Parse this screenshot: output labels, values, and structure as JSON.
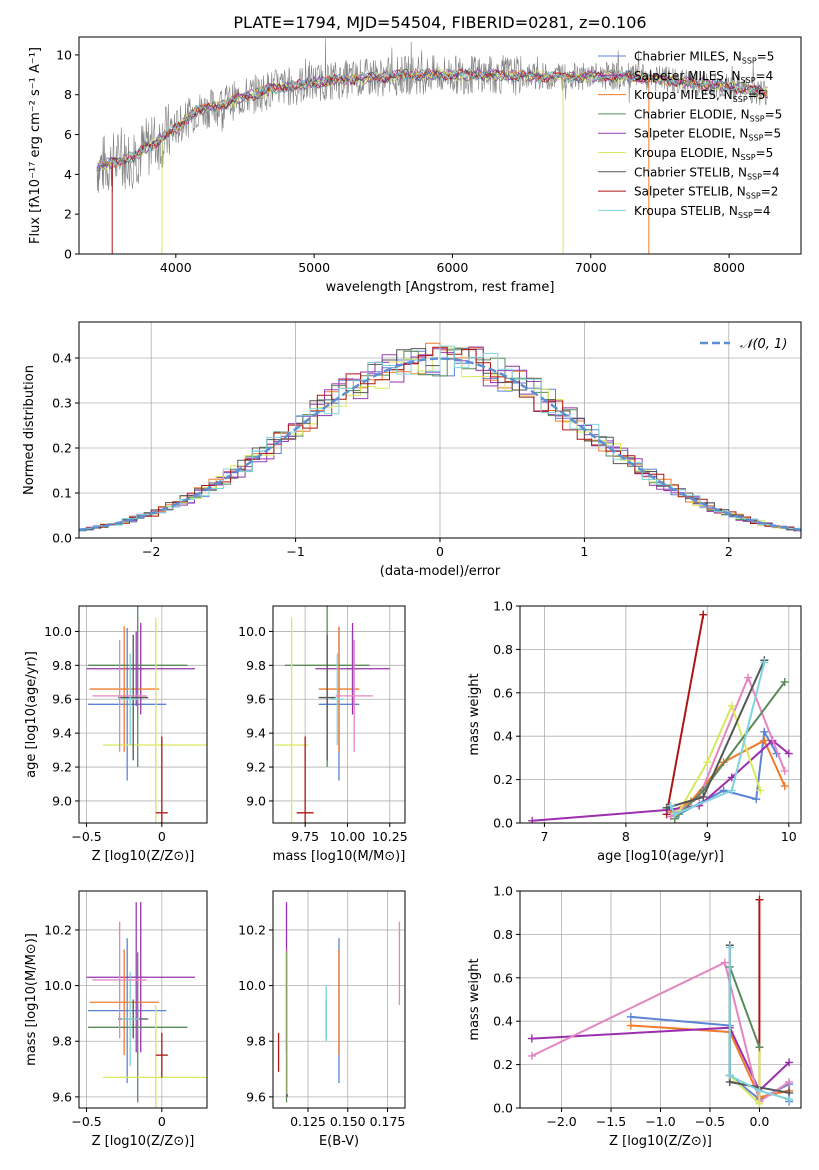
{
  "figure_title": "PLATE=1794, MJD=54504, FIBERID=0281, z=0.106",
  "colors": {
    "chabrier_miles": "#5b84d7",
    "salpeter_miles": "#9b2fae",
    "kroupa_miles": "#ef7c2b",
    "chabrier_elodie": "#5b8a5a",
    "salpeter_elodie": "#9a3fb5",
    "kroupa_elodie": "#d9e85e",
    "chabrier_stelib": "#555555",
    "salpeter_stelib": "#b01515",
    "kroupa_stelib": "#7fd3dd",
    "spectrum_grey": "#808080",
    "pink": "#e585c0",
    "normal_curve": "#5b8fd6"
  },
  "legend_spectrum": [
    {
      "label": "Chabrier MILES, N",
      "sub": "SSP",
      "suffix": "=5",
      "color": "#5b84d7"
    },
    {
      "label": "Salpeter MILES, N",
      "sub": "SSP",
      "suffix": "=4",
      "color": "#9b2fae"
    },
    {
      "label": "Kroupa MILES, N",
      "sub": "SSP",
      "suffix": "=5",
      "color": "#ef7c2b"
    },
    {
      "label": "Chabrier ELODIE, N",
      "sub": "SSP",
      "suffix": "=5",
      "color": "#5b8a5a"
    },
    {
      "label": "Salpeter ELODIE, N",
      "sub": "SSP",
      "suffix": "=5",
      "color": "#9a3fb5"
    },
    {
      "label": "Kroupa ELODIE, N",
      "sub": "SSP",
      "suffix": "=5",
      "color": "#d9e85e"
    },
    {
      "label": "Chabrier STELIB, N",
      "sub": "SSP",
      "suffix": "=4",
      "color": "#555555"
    },
    {
      "label": "Salpeter STELIB, N",
      "sub": "SSP",
      "suffix": "=2",
      "color": "#b01515"
    },
    {
      "label": "Kroupa STELIB, N",
      "sub": "SSP",
      "suffix": "=4",
      "color": "#7fd3dd"
    }
  ],
  "chart_data": [
    {
      "id": "spectrum",
      "type": "line",
      "xlabel": "wavelength [Angstrom, rest frame]",
      "ylabel": "Flux [fλ10⁻¹⁷ erg cm⁻² s⁻¹ A⁻¹]",
      "xlim": [
        3300,
        8520
      ],
      "ylim": [
        0,
        10.9
      ],
      "xticks": [
        4000,
        5000,
        6000,
        7000,
        8000
      ],
      "yticks": [
        0,
        2,
        4,
        6,
        8,
        10
      ],
      "continuum": {
        "x": [
          3430,
          3550,
          3700,
          3850,
          4000,
          4150,
          4300,
          4500,
          4700,
          4900,
          5100,
          5300,
          5500,
          5700,
          5900,
          6100,
          6300,
          6500,
          6700,
          6900,
          7100,
          7300,
          7500,
          7700,
          7900,
          8100,
          8280
        ],
        "y": [
          4.4,
          4.6,
          4.9,
          5.6,
          6.3,
          7.2,
          7.4,
          7.9,
          8.3,
          8.5,
          8.7,
          8.8,
          8.9,
          9.0,
          9.0,
          9.0,
          9.0,
          8.95,
          8.9,
          8.9,
          8.95,
          8.9,
          8.8,
          8.6,
          8.5,
          8.3,
          8.1
        ]
      }
    },
    {
      "id": "residuals",
      "type": "histogram",
      "xlabel": "(data-model)/error",
      "ylabel": "Normed distribution",
      "xlim": [
        -2.5,
        2.5
      ],
      "ylim": [
        0,
        0.48
      ],
      "xticks": [
        -2,
        -1,
        0,
        1,
        2
      ],
      "yticks": [
        0.0,
        0.1,
        0.2,
        0.3,
        0.4
      ],
      "legend": "𝒩(0, 1)",
      "bin_width": 0.1,
      "grid": true
    },
    {
      "id": "age_vs_Z",
      "type": "errorbar",
      "xlabel": "Z [log10(Z/Z⊙)]",
      "ylabel": "age  [log10(age/yr)]",
      "xlim": [
        -0.55,
        0.3
      ],
      "ylim": [
        8.87,
        10.15
      ],
      "xticks": [
        -0.5,
        0.0
      ],
      "yticks": [
        9.0,
        9.2,
        9.4,
        9.6,
        9.8,
        10.0
      ],
      "points": [
        {
          "x": -0.23,
          "y": 9.57,
          "xerr": 0.26,
          "yerr": 0.45,
          "color": "#5b84d7"
        },
        {
          "x": -0.14,
          "y": 9.78,
          "xerr": 0.36,
          "yerr": 0.27,
          "color": "#9b2fae"
        },
        {
          "x": -0.25,
          "y": 9.66,
          "xerr": 0.23,
          "yerr": 0.37,
          "color": "#ef7c2b"
        },
        {
          "x": -0.16,
          "y": 9.8,
          "xerr": 0.33,
          "yerr": 0.6,
          "color": "#5b8a5a"
        },
        {
          "x": -0.17,
          "y": 9.78,
          "xerr": 0.06,
          "yerr": 0.22,
          "color": "#9a3fb5"
        },
        {
          "x": -0.04,
          "y": 9.33,
          "xerr": 0.35,
          "yerr": 0.75,
          "color": "#d9e85e"
        },
        {
          "x": -0.19,
          "y": 9.61,
          "xerr": 0.1,
          "yerr": 0.37,
          "color": "#555555"
        },
        {
          "x": 0.0,
          "y": 8.93,
          "xerr": 0.04,
          "yerr": 0.45,
          "color": "#b01515"
        },
        {
          "x": -0.21,
          "y": 9.6,
          "xerr": 0.06,
          "yerr": 0.27,
          "color": "#7fd3dd"
        },
        {
          "x": -0.28,
          "y": 9.62,
          "xerr": 0.18,
          "yerr": 0.33,
          "color": "#e585c0"
        }
      ]
    },
    {
      "id": "age_vs_mass",
      "type": "errorbar",
      "xlabel": "mass [log10(M/M⊙)]",
      "ylabel": "",
      "xlim": [
        9.56,
        10.34
      ],
      "ylim": [
        8.87,
        10.15
      ],
      "xticks": [
        9.75,
        10.0,
        10.25
      ],
      "yticks": [
        9.0,
        9.2,
        9.4,
        9.6,
        9.8,
        10.0
      ],
      "points": [
        {
          "x": 9.95,
          "y": 9.57,
          "xerr": 0.12,
          "yerr": 0.45,
          "color": "#5b84d7"
        },
        {
          "x": 10.03,
          "y": 9.78,
          "xerr": 0.22,
          "yerr": 0.27,
          "color": "#9b2fae"
        },
        {
          "x": 9.95,
          "y": 9.66,
          "xerr": 0.12,
          "yerr": 0.37,
          "color": "#ef7c2b"
        },
        {
          "x": 9.88,
          "y": 9.8,
          "xerr": 0.25,
          "yerr": 0.6,
          "color": "#5b8a5a"
        },
        {
          "x": 10.03,
          "y": 9.78,
          "xerr": 0.03,
          "yerr": 0.22,
          "color": "#9a3fb5"
        },
        {
          "x": 9.67,
          "y": 9.33,
          "xerr": 0.1,
          "yerr": 0.75,
          "color": "#d9e85e"
        },
        {
          "x": 9.88,
          "y": 9.61,
          "xerr": 0.05,
          "yerr": 0.37,
          "color": "#555555"
        },
        {
          "x": 9.75,
          "y": 8.93,
          "xerr": 0.05,
          "yerr": 0.45,
          "color": "#b01515"
        },
        {
          "x": 9.94,
          "y": 9.6,
          "xerr": 0.04,
          "yerr": 0.27,
          "color": "#7fd3dd"
        },
        {
          "x": 10.04,
          "y": 9.62,
          "xerr": 0.11,
          "yerr": 0.33,
          "color": "#e585c0"
        }
      ]
    },
    {
      "id": "weight_vs_age",
      "type": "line",
      "xlabel": "age  [log10(age/yr)]",
      "ylabel": "mass weight",
      "xlim": [
        6.7,
        10.15
      ],
      "ylim": [
        0.0,
        1.0
      ],
      "xticks": [
        7,
        8,
        9,
        10
      ],
      "yticks": [
        0.0,
        0.2,
        0.4,
        0.6,
        0.8,
        1.0
      ],
      "series": [
        {
          "color": "#b01515",
          "x": [
            8.5,
            8.95
          ],
          "y": [
            0.04,
            0.96
          ]
        },
        {
          "color": "#5b84d7",
          "x": [
            8.5,
            8.65,
            9.2,
            9.6,
            9.7,
            9.85
          ],
          "y": [
            0.07,
            0.04,
            0.15,
            0.11,
            0.42,
            0.32
          ]
        },
        {
          "color": "#ef7c2b",
          "x": [
            8.55,
            8.8,
            9.2,
            9.7,
            9.95
          ],
          "y": [
            0.05,
            0.1,
            0.28,
            0.38,
            0.17
          ]
        },
        {
          "color": "#9b2fae",
          "x": [
            6.85,
            8.5,
            8.9,
            9.3,
            9.8,
            10.0
          ],
          "y": [
            0.01,
            0.06,
            0.08,
            0.21,
            0.38,
            0.32
          ]
        },
        {
          "color": "#e585c0",
          "x": [
            8.55,
            8.9,
            9.5,
            9.95
          ],
          "y": [
            0.03,
            0.12,
            0.67,
            0.24
          ]
        },
        {
          "color": "#d9e85e",
          "x": [
            8.6,
            9.0,
            9.3,
            9.65
          ],
          "y": [
            0.02,
            0.28,
            0.54,
            0.15
          ]
        },
        {
          "color": "#5b8a5a",
          "x": [
            8.6,
            8.95,
            9.95
          ],
          "y": [
            0.02,
            0.15,
            0.65
          ]
        },
        {
          "color": "#555555",
          "x": [
            8.5,
            8.95,
            9.7
          ],
          "y": [
            0.07,
            0.12,
            0.75
          ]
        },
        {
          "color": "#7fd3dd",
          "x": [
            8.55,
            8.6,
            9.3,
            9.7
          ],
          "y": [
            0.08,
            0.04,
            0.15,
            0.74
          ]
        }
      ]
    },
    {
      "id": "mass_vs_Z",
      "type": "errorbar",
      "xlabel": "Z [log10(Z/Z⊙)]",
      "ylabel": "mass [log10(M/M⊙)]",
      "xlim": [
        -0.55,
        0.3
      ],
      "ylim": [
        9.56,
        10.34
      ],
      "xticks": [
        -0.5,
        0.0
      ],
      "yticks": [
        9.6,
        9.8,
        10.0,
        10.2
      ],
      "points": [
        {
          "x": -0.23,
          "y": 9.91,
          "xerr": 0.26,
          "yerr": 0.26,
          "color": "#5b84d7"
        },
        {
          "x": -0.14,
          "y": 10.03,
          "xerr": 0.36,
          "yerr": 0.27,
          "color": "#9b2fae"
        },
        {
          "x": -0.25,
          "y": 9.94,
          "xerr": 0.23,
          "yerr": 0.19,
          "color": "#ef7c2b"
        },
        {
          "x": -0.16,
          "y": 9.85,
          "xerr": 0.33,
          "yerr": 0.27,
          "color": "#5b8a5a"
        },
        {
          "x": -0.17,
          "y": 10.03,
          "xerr": 0.06,
          "yerr": 0.27,
          "color": "#9a3fb5"
        },
        {
          "x": -0.04,
          "y": 9.67,
          "xerr": 0.35,
          "yerr": 0.26,
          "color": "#d9e85e"
        },
        {
          "x": -0.19,
          "y": 9.88,
          "xerr": 0.1,
          "yerr": 0.07,
          "color": "#555555"
        },
        {
          "x": 0.0,
          "y": 9.75,
          "xerr": 0.04,
          "yerr": 0.08,
          "color": "#b01515"
        },
        {
          "x": -0.21,
          "y": 9.88,
          "xerr": 0.06,
          "yerr": 0.17,
          "color": "#7fd3dd"
        },
        {
          "x": -0.28,
          "y": 10.02,
          "xerr": 0.18,
          "yerr": 0.21,
          "color": "#e585c0"
        }
      ]
    },
    {
      "id": "mass_vs_ebv",
      "type": "errorbar",
      "xlabel": "E(B-V)",
      "ylabel": "",
      "xlim": [
        0.103,
        0.186
      ],
      "ylim": [
        9.56,
        10.34
      ],
      "xticks": [
        0.125,
        0.15,
        0.175
      ],
      "yticks": [
        9.6,
        9.8,
        10.0,
        10.2
      ],
      "xtick_labels": [
        "0.125",
        "0.150",
        "0.175"
      ],
      "points": [
        {
          "x": 0.1445,
          "y": 9.91,
          "xerr": 0,
          "yerr": 0.26,
          "color": "#5b84d7"
        },
        {
          "x": 0.1115,
          "y": 10.03,
          "xerr": 0,
          "yerr": 0.27,
          "color": "#9b2fae"
        },
        {
          "x": 0.1445,
          "y": 9.94,
          "xerr": 0,
          "yerr": 0.19,
          "color": "#ef7c2b"
        },
        {
          "x": 0.1115,
          "y": 9.85,
          "xerr": 0,
          "yerr": 0.27,
          "color": "#5b8a5a"
        },
        {
          "x": 0.112,
          "y": 9.85,
          "xerr": 0,
          "yerr": 0.25,
          "color": "#9a3fb5"
        },
        {
          "x": 0.112,
          "y": 9.87,
          "xerr": 0,
          "yerr": 0.26,
          "color": "#d9e85e"
        },
        {
          "x": 0.1365,
          "y": 9.88,
          "xerr": 0,
          "yerr": 0.07,
          "color": "#555555"
        },
        {
          "x": 0.1065,
          "y": 9.76,
          "xerr": 0,
          "yerr": 0.07,
          "color": "#b01515"
        },
        {
          "x": 0.1365,
          "y": 9.9,
          "xerr": 0,
          "yerr": 0.1,
          "color": "#7fd3dd"
        },
        {
          "x": 0.1825,
          "y": 10.08,
          "xerr": 0,
          "yerr": 0.15,
          "color": "#e585c0"
        }
      ]
    },
    {
      "id": "weight_vs_Z",
      "type": "line",
      "xlabel": "Z [log10(Z/Z⊙)]",
      "ylabel": "mass weight",
      "xlim": [
        -2.42,
        0.42
      ],
      "ylim": [
        0.0,
        1.0
      ],
      "xticks": [
        -2.0,
        -1.5,
        -1.0,
        -0.5,
        0.0
      ],
      "yticks": [
        0.0,
        0.2,
        0.4,
        0.6,
        0.8,
        1.0
      ],
      "series": [
        {
          "color": "#b01515",
          "x": [
            0.0,
            0.0,
            0.0
          ],
          "y": [
            0.04,
            0.96,
            0.08
          ]
        },
        {
          "color": "#5b84d7",
          "x": [
            -1.3,
            -0.3,
            -0.3,
            0.0,
            0.3,
            0.3
          ],
          "y": [
            0.42,
            0.38,
            0.15,
            0.04,
            0.11,
            0.03
          ]
        },
        {
          "color": "#ef7c2b",
          "x": [
            -1.3,
            -0.3,
            0.0,
            0.3
          ],
          "y": [
            0.38,
            0.35,
            0.05,
            0.08
          ]
        },
        {
          "color": "#9b2fae",
          "x": [
            -2.3,
            -0.3,
            0.0,
            0.3
          ],
          "y": [
            0.32,
            0.37,
            0.08,
            0.21
          ]
        },
        {
          "color": "#e585c0",
          "x": [
            -2.3,
            -0.35,
            0.0,
            0.3
          ],
          "y": [
            0.24,
            0.67,
            0.03,
            0.12
          ]
        },
        {
          "color": "#d9e85e",
          "x": [
            -0.3,
            0.0,
            0.0
          ],
          "y": [
            0.15,
            0.02,
            0.28
          ]
        },
        {
          "color": "#5b8a5a",
          "x": [
            -0.3,
            -0.3,
            0.0
          ],
          "y": [
            0.15,
            0.65,
            0.28
          ]
        },
        {
          "color": "#555555",
          "x": [
            -0.3,
            -0.3,
            0.3
          ],
          "y": [
            0.75,
            0.12,
            0.07
          ]
        },
        {
          "color": "#7fd3dd",
          "x": [
            -0.3,
            -0.3,
            0.0,
            0.3
          ],
          "y": [
            0.74,
            0.15,
            0.08,
            0.04
          ]
        }
      ]
    }
  ]
}
